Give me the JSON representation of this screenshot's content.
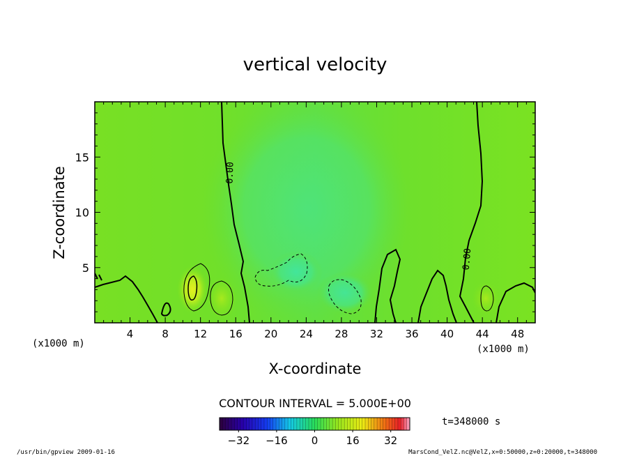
{
  "chart_data": {
    "type": "heatmap",
    "title": "vertical velocity",
    "xlabel": "X-coordinate",
    "ylabel": "Z-coordinate",
    "x_unit_left": "(x1000 m)",
    "x_unit_right": "(x1000 m)",
    "xlim": [
      0,
      50
    ],
    "ylim": [
      0,
      20
    ],
    "xticks": [
      4,
      8,
      12,
      16,
      20,
      24,
      28,
      32,
      36,
      40,
      44,
      48
    ],
    "yticks": [
      5,
      10,
      15
    ],
    "contour_interval_text": "CONTOUR INTERVAL = 5.000E+00",
    "time_text": "t=348000 s",
    "contour_labels": [
      "0.00",
      "0.00"
    ],
    "colorbar": {
      "range": [
        -40,
        40
      ],
      "ticks": [
        -32,
        -16,
        0,
        16,
        32
      ]
    },
    "footer_left": "/usr/bin/gpview  2009-01-16",
    "footer_right": "MarsCond_VelZ.nc@VelZ,x=0:50000,z=0:20000,t=348000"
  }
}
